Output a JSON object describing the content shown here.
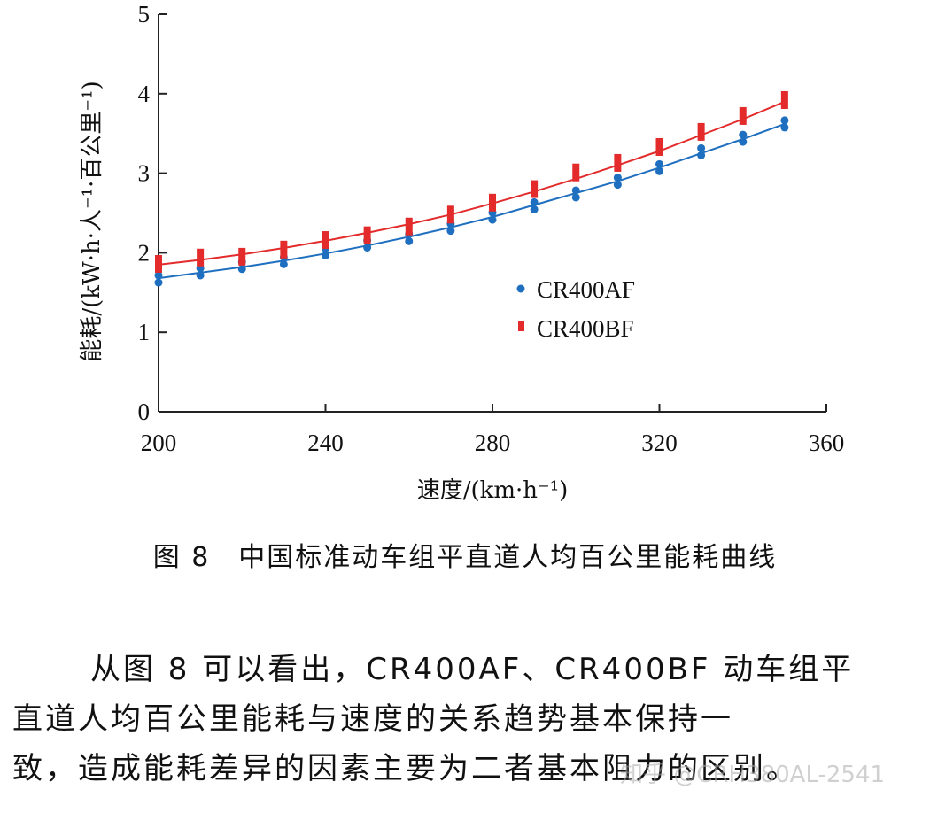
{
  "chart_data": {
    "type": "scatter",
    "xlabel": "速度/(km·h⁻¹)",
    "ylabel": "能耗/(kW·h·人⁻¹·百公里⁻¹)",
    "xlim": [
      200,
      360
    ],
    "ylim": [
      0,
      5
    ],
    "xticks": [
      "200",
      "240",
      "280",
      "320",
      "360"
    ],
    "yticks": [
      "0",
      "1",
      "2",
      "3",
      "4",
      "5"
    ],
    "grid": false,
    "legend_position": "center-right",
    "series": [
      {
        "name": "CR400AF",
        "marker": "circle",
        "color": "#1f6fc0",
        "x": [
          200,
          210,
          220,
          230,
          240,
          250,
          260,
          270,
          280,
          290,
          300,
          310,
          320,
          330,
          340,
          350
        ],
        "y": [
          1.67,
          1.76,
          1.84,
          1.9,
          2.01,
          2.11,
          2.19,
          2.32,
          2.46,
          2.59,
          2.74,
          2.9,
          3.07,
          3.27,
          3.44,
          3.62
        ],
        "fit": [
          1.68,
          1.75,
          1.82,
          1.9,
          1.99,
          2.09,
          2.2,
          2.32,
          2.45,
          2.6,
          2.75,
          2.9,
          3.07,
          3.25,
          3.43,
          3.62
        ]
      },
      {
        "name": "CR400BF",
        "marker": "square",
        "color": "#e32b2b",
        "x": [
          200,
          210,
          220,
          230,
          240,
          250,
          260,
          270,
          280,
          290,
          300,
          310,
          320,
          330,
          340,
          350
        ],
        "y": [
          1.86,
          1.94,
          1.95,
          2.04,
          2.16,
          2.22,
          2.33,
          2.48,
          2.63,
          2.8,
          3.01,
          3.13,
          3.33,
          3.52,
          3.72,
          3.92
        ],
        "fit": [
          1.85,
          1.91,
          1.98,
          2.06,
          2.15,
          2.25,
          2.36,
          2.48,
          2.62,
          2.77,
          2.93,
          3.1,
          3.28,
          3.48,
          3.68,
          3.9
        ]
      }
    ]
  },
  "caption": "图 8　中国标准动车组平直道人均百公里能耗曲线",
  "paragraph": [
    "从图 8 可以看出，CR400AF、CR400BF 动车组平",
    "直道人均百公里能耗与速度的关系趋势基本保持一",
    "致，造成能耗差异的因素主要为二者基本阻力的区别。"
  ],
  "watermark": "知乎 @CRH380AL-2541"
}
